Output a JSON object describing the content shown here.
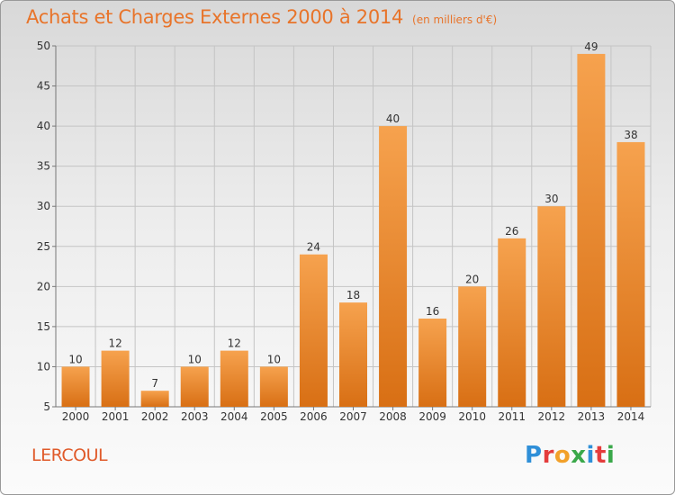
{
  "header": {
    "title": "Achats et Charges Externes 2000 à 2014",
    "subtitle": "(en milliers d'€)"
  },
  "commune": "LERCOUL",
  "logo": {
    "text": "Proxiti",
    "letters": [
      {
        "ch": "P",
        "color": "#2f8fd8"
      },
      {
        "ch": "r",
        "color": "#e43c3c"
      },
      {
        "ch": "o",
        "color": "#f2a12a"
      },
      {
        "ch": "x",
        "color": "#3aa84a"
      },
      {
        "ch": "i",
        "color": "#2f8fd8"
      },
      {
        "ch": "t",
        "color": "#e43c3c"
      },
      {
        "ch": "i",
        "color": "#3aa84a"
      }
    ]
  },
  "chart_data": {
    "type": "bar",
    "title": "Achats et Charges Externes 2000 à 2014",
    "subtitle": "(en milliers d'€)",
    "categories": [
      "2000",
      "2001",
      "2002",
      "2003",
      "2004",
      "2005",
      "2006",
      "2007",
      "2008",
      "2009",
      "2010",
      "2011",
      "2012",
      "2013",
      "2014"
    ],
    "values": [
      10,
      12,
      7,
      10,
      12,
      10,
      24,
      18,
      40,
      16,
      20,
      26,
      30,
      49,
      38
    ],
    "ylim": [
      5,
      50
    ],
    "yticks": [
      5,
      10,
      15,
      20,
      25,
      30,
      35,
      40,
      45,
      50
    ],
    "grid": true,
    "bar_color_light": "#f6a24e",
    "bar_color_dark": "#d86f14",
    "xlabel": "",
    "ylabel": ""
  }
}
